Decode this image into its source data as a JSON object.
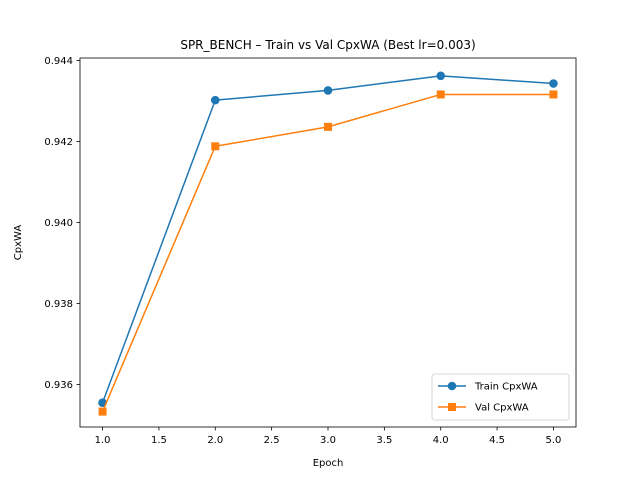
{
  "chart_data": {
    "type": "line",
    "title": "SPR_BENCH – Train vs Val CpxWA (Best lr=0.003)",
    "xlabel": "Epoch",
    "ylabel": "CpxWA",
    "x": [
      1,
      2,
      3,
      4,
      5
    ],
    "xlim": [
      0.8,
      5.2
    ],
    "ylim": [
      0.93495,
      0.94406
    ],
    "xticks": [
      "1.0",
      "1.5",
      "2.0",
      "2.5",
      "3.0",
      "3.5",
      "4.0",
      "4.5",
      "5.0"
    ],
    "yticks": [
      "0.936",
      "0.938",
      "0.940",
      "0.942",
      "0.944"
    ],
    "grid": false,
    "legend_position": "lower-right",
    "series": [
      {
        "name": "Train CpxWA",
        "color": "#1f77b4",
        "marker": "circle",
        "values": [
          0.93555,
          0.94302,
          0.94326,
          0.94362,
          0.94343
        ]
      },
      {
        "name": "Val CpxWA",
        "color": "#ff7f0e",
        "marker": "square",
        "values": [
          0.93533,
          0.94188,
          0.94236,
          0.94316,
          0.94316
        ]
      }
    ]
  }
}
